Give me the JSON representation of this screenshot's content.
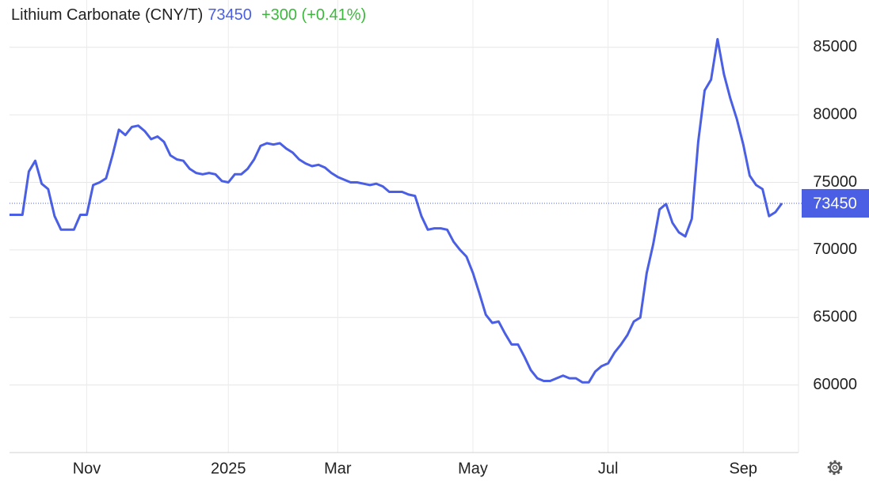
{
  "chart_data": {
    "type": "line",
    "title": "Lithium Carbonate (CNY/T)",
    "change": "+300 (+0.41%)",
    "categories": [
      null,
      null,
      null,
      null,
      null,
      null,
      null,
      null,
      null,
      null,
      null,
      null,
      "Nov",
      null,
      null,
      null,
      null,
      null,
      null,
      null,
      null,
      null,
      null,
      null,
      null,
      null,
      null,
      null,
      null,
      null,
      null,
      null,
      null,
      null,
      "2025",
      null,
      null,
      null,
      null,
      null,
      null,
      null,
      null,
      null,
      null,
      null,
      null,
      null,
      null,
      null,
      null,
      "Mar",
      null,
      null,
      null,
      null,
      null,
      null,
      null,
      null,
      null,
      null,
      null,
      null,
      null,
      null,
      null,
      null,
      null,
      null,
      null,
      null,
      "May",
      null,
      null,
      null,
      null,
      null,
      null,
      null,
      null,
      null,
      null,
      null,
      null,
      null,
      null,
      null,
      null,
      null,
      null,
      null,
      null,
      "Jul",
      null,
      null,
      null,
      null,
      null,
      null,
      null,
      null,
      null,
      null,
      null,
      null,
      null,
      null,
      null,
      null,
      null,
      null,
      null,
      null,
      "Sep",
      null,
      null,
      null,
      null,
      null,
      null
    ],
    "series": [
      {
        "name": "Lithium Carbonate (CNY/T)",
        "color": "#4a5fe3",
        "values": [
          72600,
          72600,
          72600,
          75800,
          76600,
          74900,
          74500,
          72500,
          71500,
          71500,
          71500,
          72600,
          72600,
          74800,
          75000,
          75300,
          77000,
          78900,
          78500,
          79100,
          79200,
          78800,
          78200,
          78400,
          78000,
          77000,
          76700,
          76600,
          76000,
          75700,
          75600,
          75700,
          75600,
          75100,
          75000,
          75600,
          75600,
          76000,
          76700,
          77700,
          77900,
          77800,
          77900,
          77500,
          77200,
          76700,
          76400,
          76200,
          76300,
          76100,
          75700,
          75400,
          75200,
          75000,
          75000,
          74900,
          74800,
          74900,
          74700,
          74300,
          74300,
          74300,
          74100,
          74000,
          72500,
          71500,
          71600,
          71600,
          71500,
          70600,
          70000,
          69500,
          68300,
          66800,
          65200,
          64600,
          64700,
          63800,
          63000,
          63000,
          62100,
          61100,
          60500,
          60300,
          60300,
          60500,
          60700,
          60500,
          60500,
          60200,
          60200,
          61000,
          61400,
          61600,
          62400,
          63000,
          63700,
          64700,
          65000,
          68300,
          70400,
          73000,
          73400,
          72000,
          71300,
          71000,
          72300,
          78000,
          81800,
          82600,
          85600,
          83000,
          81200,
          79700,
          77800,
          75500,
          74800,
          74500,
          72500,
          72800,
          73450
        ]
      }
    ],
    "ylim": [
      55000,
      88500
    ],
    "yticks": [
      60000,
      65000,
      70000,
      75000,
      80000,
      85000
    ],
    "grid": true
  }
}
